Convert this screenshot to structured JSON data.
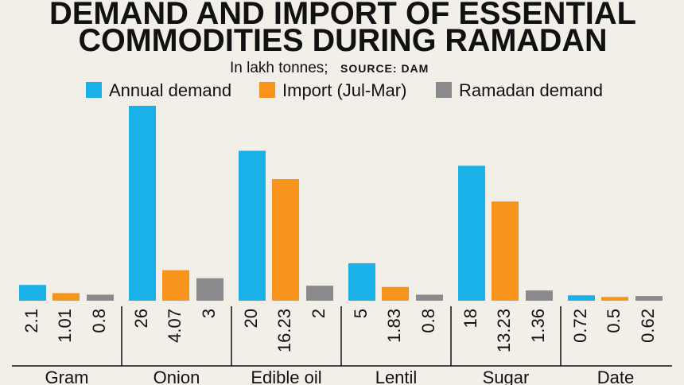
{
  "chart_data": {
    "type": "bar",
    "title": [
      "DEMAND AND IMPORT OF ESSENTIAL",
      "COMMODITIES DURING RAMADAN"
    ],
    "subtitle": "In lakh tonnes;",
    "source": "SOURCE: DAM",
    "categories": [
      "Gram",
      "Onion",
      "Edible oil",
      "Lentil",
      "Sugar",
      "Date"
    ],
    "series": [
      {
        "name": "Annual demand",
        "color": "#1ab0e8",
        "values": [
          2.1,
          26,
          20,
          5,
          18,
          0.72
        ]
      },
      {
        "name": "Import (Jul-Mar)",
        "color": "#f7941d",
        "values": [
          1.01,
          4.07,
          16.23,
          1.83,
          13.23,
          0.5
        ]
      },
      {
        "name": "Ramadan demand",
        "color": "#8a8a8c",
        "values": [
          0.8,
          3,
          2,
          0.8,
          1.36,
          0.62
        ]
      }
    ]
  }
}
